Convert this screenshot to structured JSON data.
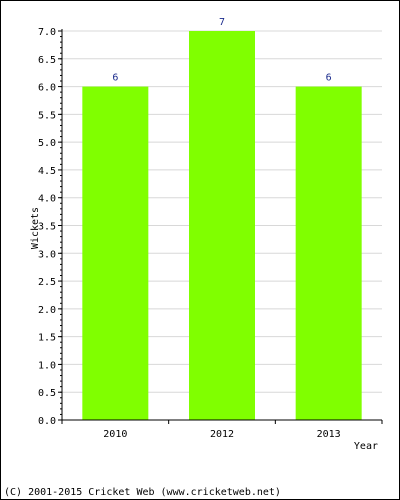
{
  "chart_data": {
    "type": "bar",
    "categories": [
      "2010",
      "2012",
      "2013"
    ],
    "values": [
      6,
      7,
      6
    ],
    "value_labels": [
      "6",
      "7",
      "6"
    ],
    "title": "",
    "xlabel": "Year",
    "ylabel": "Wickets",
    "ylim": [
      0,
      7
    ],
    "yticks": [
      "0.0",
      "0.5",
      "1.0",
      "1.5",
      "2.0",
      "2.5",
      "3.0",
      "3.5",
      "4.0",
      "4.5",
      "5.0",
      "5.5",
      "6.0",
      "6.5",
      "7.0"
    ],
    "grid": true,
    "legend": "none",
    "bar_color": "#80ff00",
    "value_label_color": "#1a2a8c"
  },
  "footer": {
    "copyright": "(C) 2001-2015 Cricket Web (www.cricketweb.net)"
  }
}
